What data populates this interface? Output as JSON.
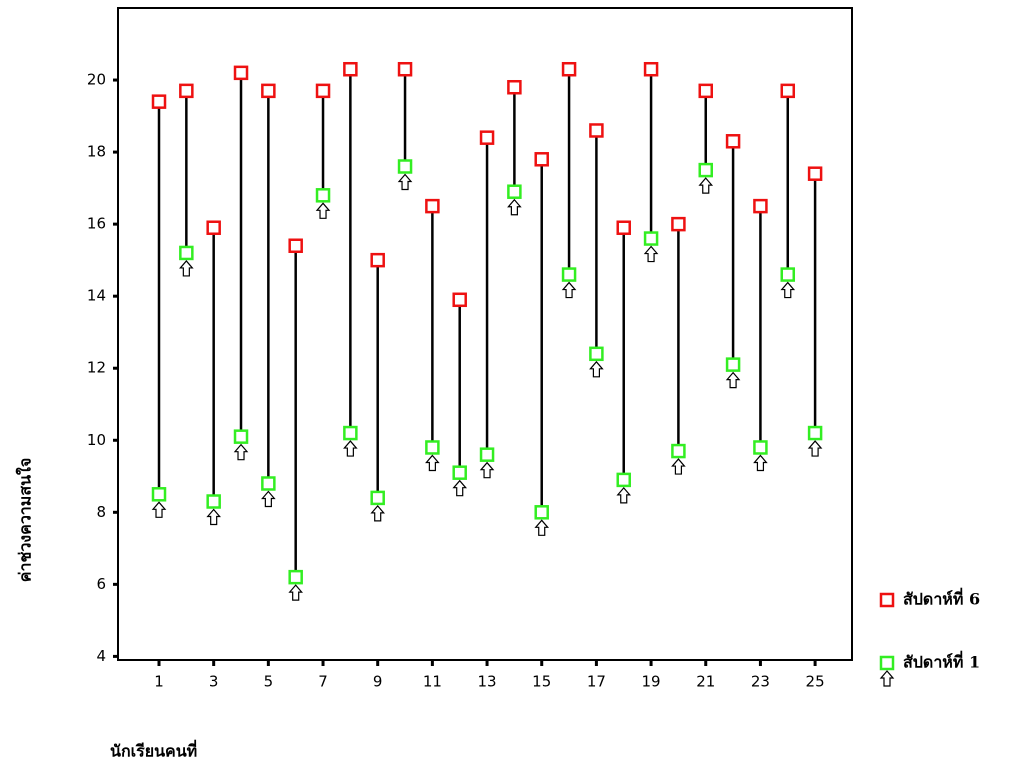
{
  "chart_data": {
    "type": "hilo",
    "y_label": "ค่าช่วงความสนใจ",
    "x_label": "นักเรียนคนที่",
    "x": [
      1,
      2,
      3,
      4,
      5,
      6,
      7,
      8,
      9,
      10,
      11,
      12,
      13,
      14,
      15,
      16,
      17,
      18,
      19,
      20,
      21,
      22,
      23,
      24,
      25
    ],
    "xlim": [
      -0.5,
      26.35
    ],
    "xticks": [
      1,
      3,
      5,
      7,
      9,
      11,
      13,
      15,
      17,
      19,
      21,
      23,
      25
    ],
    "ylim": [
      3.9,
      22
    ],
    "yticks": [
      4,
      6,
      8,
      10,
      12,
      14,
      16,
      18,
      20
    ],
    "series": [
      {
        "name": "สัปดาห์ที่ 6",
        "color": "#ee1111",
        "values": [
          19.4,
          19.7,
          15.9,
          20.2,
          19.7,
          15.4,
          19.7,
          20.3,
          15.0,
          20.3,
          16.5,
          13.9,
          18.4,
          19.8,
          17.8,
          20.3,
          18.6,
          15.9,
          20.3,
          16.0,
          19.7,
          18.3,
          16.5,
          19.7,
          17.4
        ]
      },
      {
        "name": "สัปดาห์ที่ 1",
        "color": "#33ee22",
        "values": [
          8.5,
          15.2,
          8.3,
          10.1,
          8.8,
          6.2,
          16.8,
          10.2,
          8.4,
          17.6,
          9.8,
          9.1,
          9.6,
          16.9,
          8.0,
          14.6,
          12.4,
          8.9,
          15.6,
          9.7,
          17.5,
          12.1,
          9.8,
          14.6,
          10.2
        ]
      }
    ]
  }
}
